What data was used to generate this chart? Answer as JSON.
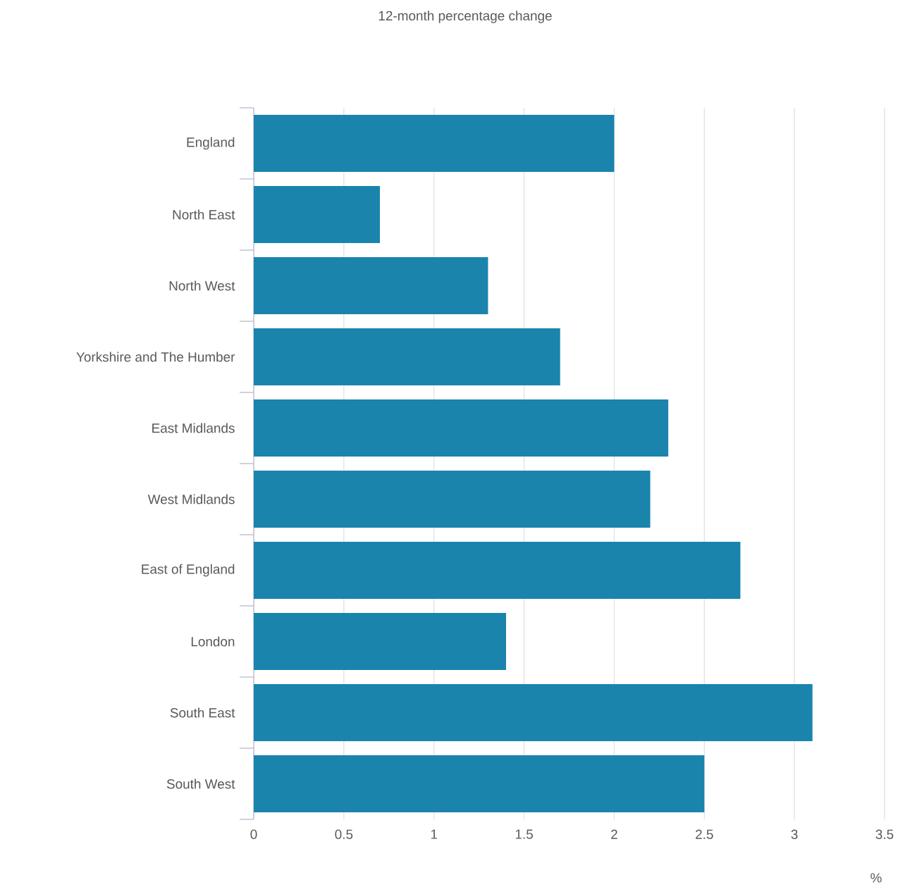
{
  "chart_data": {
    "type": "bar",
    "orientation": "horizontal",
    "title": "12-month percentage change",
    "xlabel": "%",
    "categories": [
      "England",
      "North East",
      "North West",
      "Yorkshire and The Humber",
      "East Midlands",
      "West Midlands",
      "East of England",
      "London",
      "South East",
      "South West"
    ],
    "values": [
      2.0,
      0.7,
      1.3,
      1.7,
      2.3,
      2.2,
      2.7,
      1.4,
      3.1,
      2.5
    ],
    "color": "#1a84ad",
    "xlim": [
      0,
      3.5
    ],
    "xticks": [
      0,
      0.5,
      1,
      1.5,
      2,
      2.5,
      3,
      3.5
    ],
    "grid": "x"
  }
}
